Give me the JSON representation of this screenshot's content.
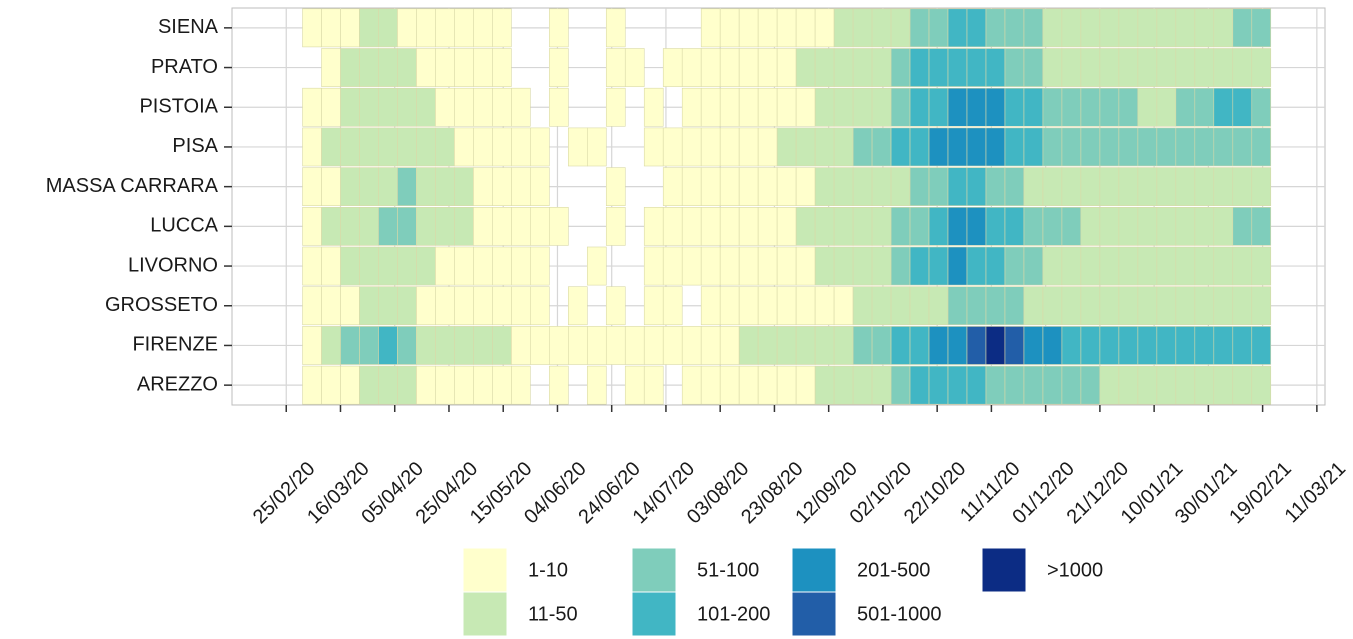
{
  "chart_data": {
    "type": "heatmap",
    "x": [
      "24/02/20",
      "02/03/20",
      "09/03/20",
      "16/03/20",
      "23/03/20",
      "30/03/20",
      "06/04/20",
      "13/04/20",
      "20/04/20",
      "27/04/20",
      "04/05/20",
      "11/05/20",
      "18/05/20",
      "25/05/20",
      "01/06/20",
      "08/06/20",
      "15/06/20",
      "22/06/20",
      "29/06/20",
      "06/07/20",
      "13/07/20",
      "20/07/20",
      "27/07/20",
      "03/08/20",
      "10/08/20",
      "17/08/20",
      "24/08/20",
      "31/08/20",
      "07/09/20",
      "14/09/20",
      "21/09/20",
      "28/09/20",
      "05/10/20",
      "12/10/20",
      "19/10/20",
      "26/10/20",
      "02/11/20",
      "09/11/20",
      "16/11/20",
      "23/11/20",
      "30/11/20",
      "07/12/20",
      "14/12/20",
      "21/12/20",
      "28/12/20",
      "04/01/21",
      "11/01/21",
      "18/01/21",
      "25/01/21",
      "01/02/21",
      "08/02/21",
      "15/02/21"
    ],
    "series": [
      {
        "name": "AREZZO",
        "values": [
          null,
          5,
          5,
          5,
          30,
          30,
          30,
          5,
          5,
          5,
          5,
          5,
          5,
          null,
          5,
          null,
          5,
          null,
          5,
          5,
          null,
          5,
          5,
          5,
          5,
          5,
          5,
          5,
          30,
          30,
          30,
          30,
          75,
          150,
          150,
          150,
          150,
          75,
          75,
          75,
          75,
          75,
          75,
          30,
          30,
          30,
          30,
          30,
          30,
          30,
          30,
          30
        ]
      },
      {
        "name": "FIRENZE",
        "values": [
          null,
          5,
          30,
          75,
          75,
          150,
          75,
          30,
          30,
          30,
          30,
          30,
          5,
          5,
          5,
          5,
          5,
          5,
          5,
          5,
          5,
          5,
          5,
          5,
          30,
          30,
          30,
          30,
          30,
          30,
          75,
          75,
          150,
          150,
          350,
          350,
          700,
          1200,
          700,
          350,
          350,
          150,
          150,
          150,
          150,
          150,
          150,
          150,
          150,
          150,
          150,
          150
        ]
      },
      {
        "name": "GROSSETO",
        "values": [
          null,
          5,
          5,
          5,
          30,
          30,
          30,
          5,
          5,
          5,
          5,
          5,
          5,
          5,
          null,
          5,
          null,
          5,
          null,
          5,
          5,
          null,
          5,
          5,
          5,
          5,
          5,
          5,
          5,
          5,
          30,
          30,
          30,
          30,
          30,
          75,
          75,
          75,
          75,
          30,
          30,
          30,
          30,
          30,
          30,
          30,
          30,
          30,
          30,
          30,
          30,
          30
        ]
      },
      {
        "name": "LIVORNO",
        "values": [
          null,
          5,
          5,
          30,
          30,
          30,
          30,
          30,
          5,
          5,
          5,
          5,
          5,
          5,
          null,
          null,
          5,
          null,
          null,
          5,
          5,
          5,
          5,
          5,
          5,
          5,
          5,
          5,
          30,
          30,
          30,
          30,
          75,
          150,
          150,
          350,
          150,
          150,
          75,
          75,
          30,
          30,
          30,
          30,
          30,
          30,
          30,
          30,
          30,
          30,
          30,
          30
        ]
      },
      {
        "name": "LUCCA",
        "values": [
          null,
          5,
          30,
          30,
          30,
          75,
          75,
          30,
          30,
          30,
          5,
          5,
          5,
          5,
          5,
          null,
          null,
          5,
          null,
          5,
          5,
          5,
          5,
          5,
          5,
          5,
          5,
          30,
          30,
          30,
          30,
          30,
          75,
          75,
          150,
          350,
          350,
          150,
          150,
          75,
          75,
          75,
          30,
          30,
          30,
          30,
          30,
          30,
          30,
          30,
          75,
          75
        ]
      },
      {
        "name": "MASSA CARRARA",
        "values": [
          null,
          5,
          5,
          30,
          30,
          30,
          75,
          30,
          30,
          30,
          5,
          5,
          5,
          5,
          null,
          null,
          null,
          5,
          null,
          null,
          5,
          5,
          5,
          5,
          5,
          5,
          5,
          5,
          30,
          30,
          30,
          30,
          30,
          75,
          75,
          150,
          150,
          75,
          75,
          30,
          30,
          30,
          30,
          30,
          30,
          30,
          30,
          30,
          30,
          30,
          30,
          30
        ]
      },
      {
        "name": "PISA",
        "values": [
          null,
          5,
          30,
          30,
          30,
          30,
          30,
          30,
          30,
          5,
          5,
          5,
          5,
          5,
          null,
          5,
          5,
          null,
          null,
          5,
          5,
          5,
          5,
          5,
          5,
          5,
          30,
          30,
          30,
          30,
          75,
          75,
          150,
          150,
          350,
          350,
          350,
          350,
          150,
          150,
          75,
          75,
          75,
          75,
          75,
          75,
          75,
          75,
          75,
          75,
          75,
          75
        ]
      },
      {
        "name": "PISTOIA",
        "values": [
          null,
          5,
          5,
          30,
          30,
          30,
          30,
          30,
          5,
          5,
          5,
          5,
          5,
          null,
          5,
          null,
          null,
          5,
          null,
          5,
          null,
          5,
          5,
          5,
          5,
          5,
          5,
          5,
          30,
          30,
          30,
          30,
          75,
          150,
          150,
          350,
          350,
          350,
          150,
          150,
          75,
          75,
          75,
          75,
          75,
          30,
          30,
          75,
          75,
          150,
          150,
          75
        ]
      },
      {
        "name": "PRATO",
        "values": [
          null,
          null,
          5,
          30,
          30,
          30,
          30,
          5,
          5,
          5,
          5,
          5,
          null,
          null,
          5,
          null,
          null,
          5,
          5,
          null,
          5,
          5,
          5,
          5,
          5,
          5,
          5,
          30,
          30,
          30,
          30,
          30,
          75,
          150,
          150,
          150,
          150,
          150,
          75,
          75,
          30,
          30,
          30,
          30,
          30,
          30,
          30,
          30,
          30,
          30,
          30,
          30
        ]
      },
      {
        "name": "SIENA",
        "values": [
          null,
          5,
          5,
          5,
          30,
          30,
          5,
          5,
          5,
          5,
          5,
          5,
          null,
          null,
          5,
          null,
          null,
          5,
          null,
          null,
          null,
          null,
          5,
          5,
          5,
          5,
          5,
          5,
          5,
          30,
          30,
          30,
          30,
          75,
          75,
          150,
          150,
          75,
          75,
          75,
          30,
          30,
          30,
          30,
          30,
          30,
          30,
          30,
          30,
          30,
          75,
          75
        ]
      }
    ],
    "xlim": [
      "05/02/20",
      "14/03/21"
    ],
    "xticks": [
      "25/02/20",
      "16/03/20",
      "05/04/20",
      "25/04/20",
      "15/05/20",
      "04/06/20",
      "24/06/20",
      "14/07/20",
      "03/08/20",
      "23/08/20",
      "12/09/20",
      "02/10/20",
      "22/10/20",
      "11/11/20",
      "01/12/20",
      "21/12/20",
      "10/01/21",
      "30/01/21",
      "19/02/21",
      "11/03/21"
    ],
    "grid": true,
    "legend": [
      {
        "label": "1-10",
        "min": 1,
        "color": "#ffffcc"
      },
      {
        "label": "11-50",
        "min": 11,
        "color": "#c7e9b4"
      },
      {
        "label": "51-100",
        "min": 51,
        "color": "#7fcdbb"
      },
      {
        "label": "101-200",
        "min": 101,
        "color": "#41b6c4"
      },
      {
        "label": "201-500",
        "min": 201,
        "color": "#1d91c0"
      },
      {
        "label": "501-1000",
        "min": 501,
        "color": "#225ea8"
      },
      {
        "label": ">1000",
        "min": 1001,
        "color": "#0c2c84"
      }
    ]
  }
}
